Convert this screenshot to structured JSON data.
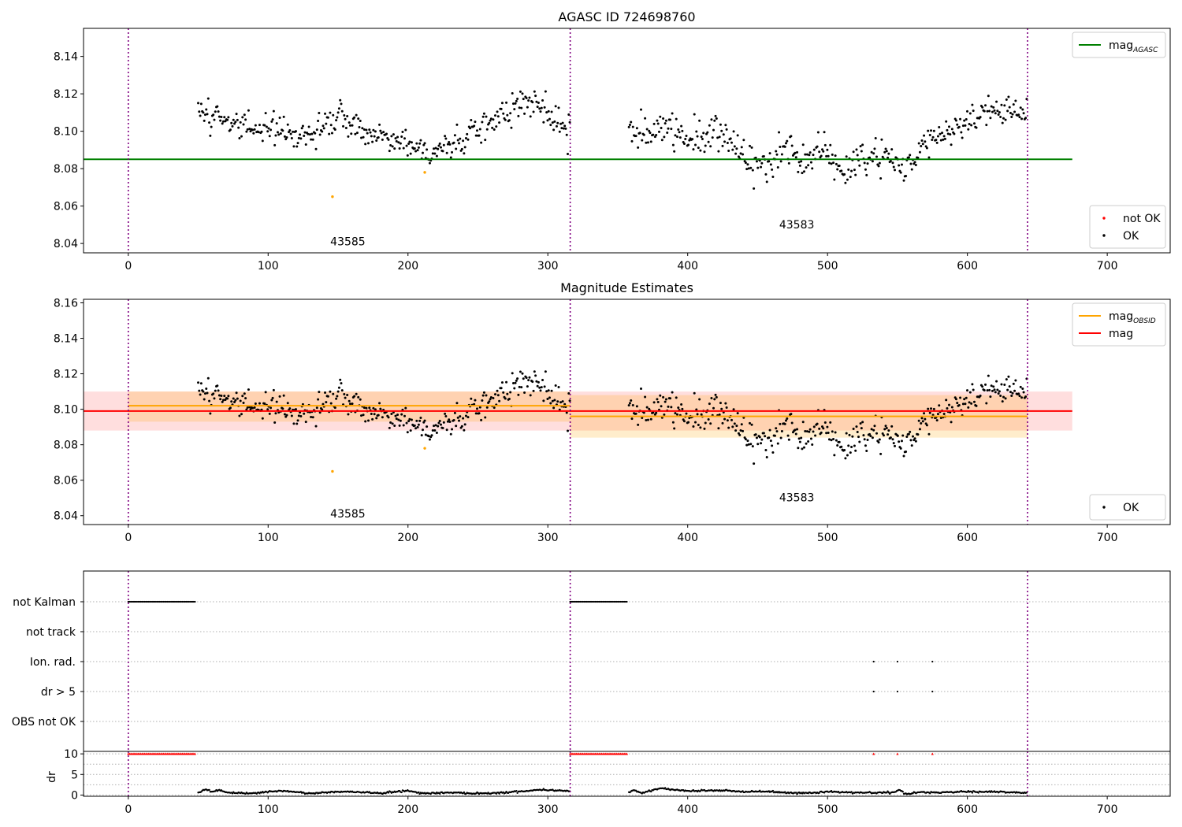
{
  "chart_data": [
    {
      "type": "scatter",
      "title": "AGASC ID 724698760",
      "xlim": [
        -32,
        745
      ],
      "ylim": [
        8.035,
        8.155
      ],
      "xticks": [
        0,
        100,
        200,
        300,
        400,
        500,
        600,
        700
      ],
      "yticks": [
        8.04,
        8.06,
        8.08,
        8.1,
        8.12,
        8.14
      ],
      "observation_boundaries": [
        0,
        316,
        643
      ],
      "obsid_labels": [
        {
          "text": "43585",
          "x": 157,
          "y": 8.039
        },
        {
          "text": "43583",
          "x": 478,
          "y": 8.048
        }
      ],
      "reference_lines": [
        {
          "name": "mag",
          "sub": "AGASC",
          "color": "#008000",
          "y": 8.085,
          "x": [
            -32,
            675
          ]
        }
      ],
      "ok_series": {
        "name": "OK",
        "color": "#000000",
        "segments": [
          {
            "x_start": 50,
            "x_end": 316,
            "trend": [
              [
                50,
                8.113
              ],
              [
                62,
                8.107
              ],
              [
                80,
                8.105
              ],
              [
                100,
                8.101
              ],
              [
                120,
                8.098
              ],
              [
                140,
                8.102
              ],
              [
                150,
                8.108
              ],
              [
                170,
                8.098
              ],
              [
                190,
                8.096
              ],
              [
                205,
                8.093
              ],
              [
                215,
                8.088
              ],
              [
                235,
                8.093
              ],
              [
                250,
                8.102
              ],
              [
                265,
                8.108
              ],
              [
                280,
                8.115
              ],
              [
                295,
                8.114
              ],
              [
                305,
                8.104
              ],
              [
                316,
                8.102
              ]
            ]
          },
          {
            "x_start": 358,
            "x_end": 643,
            "trend": [
              [
                358,
                8.104
              ],
              [
                370,
                8.098
              ],
              [
                385,
                8.103
              ],
              [
                400,
                8.097
              ],
              [
                415,
                8.097
              ],
              [
                425,
                8.099
              ],
              [
                440,
                8.088
              ],
              [
                455,
                8.08
              ],
              [
                470,
                8.09
              ],
              [
                485,
                8.083
              ],
              [
                500,
                8.092
              ],
              [
                510,
                8.077
              ],
              [
                525,
                8.086
              ],
              [
                540,
                8.087
              ],
              [
                555,
                8.078
              ],
              [
                570,
                8.094
              ],
              [
                585,
                8.1
              ],
              [
                600,
                8.104
              ],
              [
                620,
                8.113
              ],
              [
                643,
                8.11
              ]
            ]
          }
        ]
      },
      "not_ok_series": {
        "name": "not OK",
        "color": "#ff0000"
      },
      "outliers": {
        "color": "#ffa500",
        "points": [
          [
            146,
            8.065
          ],
          [
            212,
            8.078
          ]
        ]
      },
      "legend": {
        "upper_right": [
          {
            "label": "mag",
            "sub": "AGASC",
            "kind": "line",
            "color": "#008000"
          }
        ],
        "lower_right": [
          {
            "label": "not OK",
            "kind": "marker",
            "color": "#ff0000"
          },
          {
            "label": "OK",
            "kind": "marker",
            "color": "#000000"
          }
        ]
      }
    },
    {
      "type": "scatter",
      "title": "Magnitude Estimates",
      "xlim": [
        -32,
        745
      ],
      "ylim": [
        8.035,
        8.162
      ],
      "xticks": [
        0,
        100,
        200,
        300,
        400,
        500,
        600,
        700
      ],
      "yticks": [
        8.04,
        8.06,
        8.08,
        8.1,
        8.12,
        8.14,
        8.16
      ],
      "observation_boundaries": [
        0,
        316,
        643
      ],
      "obsid_labels": [
        {
          "text": "43585",
          "x": 157,
          "y": 8.039
        },
        {
          "text": "43583",
          "x": 478,
          "y": 8.048
        }
      ],
      "bands": [
        {
          "color": "#ff0000",
          "opacity": 0.13,
          "x": [
            -32,
            675
          ],
          "y": [
            8.088,
            8.11
          ]
        },
        {
          "color": "#ffa500",
          "opacity": 0.2,
          "x": [
            0,
            316
          ],
          "y": [
            8.093,
            8.11
          ]
        },
        {
          "color": "#ffa500",
          "opacity": 0.2,
          "x": [
            316,
            643
          ],
          "y": [
            8.084,
            8.108
          ]
        }
      ],
      "reference_lines": [
        {
          "name": "mag",
          "color": "#ff0000",
          "y": 8.099,
          "x": [
            -32,
            675
          ]
        },
        {
          "name": "mag",
          "sub": "OBSID",
          "color": "#ffa500",
          "y": 8.102,
          "x": [
            0,
            316
          ]
        },
        {
          "name": "mag",
          "sub": "OBSID",
          "color": "#ffa500",
          "y": 8.096,
          "x": [
            316,
            643
          ]
        }
      ],
      "legend": {
        "upper_right": [
          {
            "label": "mag",
            "sub": "OBSID",
            "kind": "line",
            "color": "#ffa500"
          },
          {
            "label": "mag",
            "kind": "line",
            "color": "#ff0000"
          }
        ],
        "lower_right": [
          {
            "label": "OK",
            "kind": "marker",
            "color": "#000000"
          }
        ]
      }
    },
    {
      "type": "scatter",
      "title": "",
      "xlim": [
        -32,
        745
      ],
      "xticks": [
        0,
        100,
        200,
        300,
        400,
        500,
        600,
        700
      ],
      "observation_boundaries": [
        0,
        316,
        643
      ],
      "flag_rows": [
        "not Kalman",
        "not track",
        "Ion. rad.",
        "dr > 5",
        "OBS not OK"
      ],
      "flags": [
        {
          "row": "not Kalman",
          "ranges": [
            [
              0,
              48
            ],
            [
              316,
              357
            ]
          ]
        },
        {
          "row": "Ion. rad.",
          "points": [
            533,
            550,
            575
          ]
        },
        {
          "row": "dr > 5",
          "points": [
            533,
            550,
            575
          ]
        }
      ],
      "dr_axis": {
        "ylabel": "dr",
        "ylim": [
          -0.3,
          10.6
        ],
        "yticks": [
          0,
          5,
          10
        ],
        "clipped_value": 10,
        "clipped_ranges": [
          [
            0,
            48
          ],
          [
            316,
            357
          ]
        ],
        "clipped_points": [
          533,
          550,
          575
        ],
        "segments": [
          {
            "x_start": 50,
            "x_end": 316,
            "trend": [
              [
                50,
                0.6
              ],
              [
                55,
                1.4
              ],
              [
                60,
                0.8
              ],
              [
                65,
                1.3
              ],
              [
                70,
                0.6
              ],
              [
                80,
                0.4
              ],
              [
                90,
                0.5
              ],
              [
                110,
                1.0
              ],
              [
                130,
                0.4
              ],
              [
                150,
                0.8
              ],
              [
                170,
                0.7
              ],
              [
                180,
                0.4
              ],
              [
                200,
                1.1
              ],
              [
                210,
                0.4
              ],
              [
                230,
                0.6
              ],
              [
                250,
                0.4
              ],
              [
                270,
                0.6
              ],
              [
                295,
                1.3
              ],
              [
                316,
                1.0
              ]
            ]
          },
          {
            "x_start": 358,
            "x_end": 643,
            "trend": [
              [
                358,
                0.8
              ],
              [
                362,
                1.1
              ],
              [
                367,
                0.5
              ],
              [
                380,
                1.6
              ],
              [
                400,
                1.0
              ],
              [
                420,
                1.2
              ],
              [
                440,
                0.8
              ],
              [
                460,
                0.8
              ],
              [
                480,
                0.4
              ],
              [
                500,
                0.8
              ],
              [
                520,
                0.6
              ],
              [
                545,
                0.6
              ],
              [
                552,
                1.2
              ],
              [
                556,
                0.2
              ],
              [
                565,
                0.7
              ],
              [
                580,
                0.6
              ],
              [
                600,
                0.8
              ],
              [
                620,
                0.8
              ],
              [
                643,
                0.5
              ]
            ]
          }
        ]
      }
    }
  ]
}
